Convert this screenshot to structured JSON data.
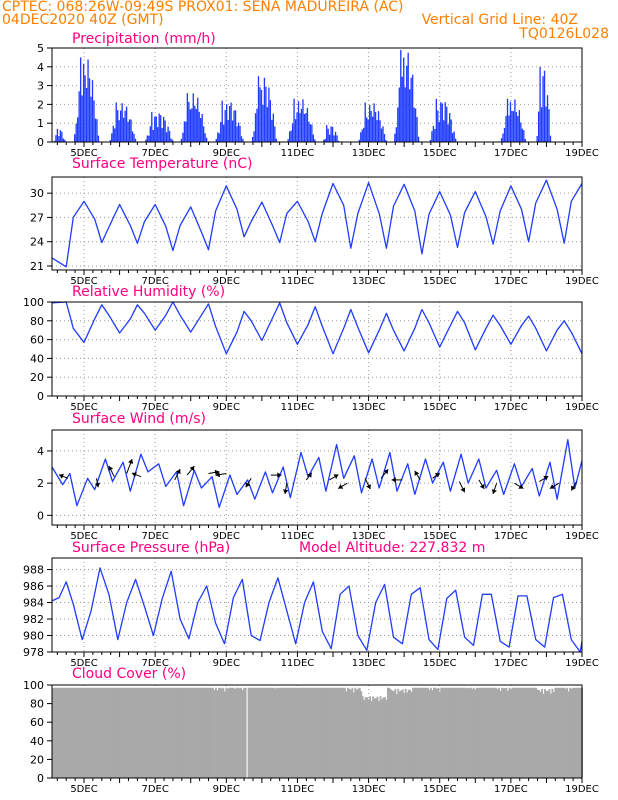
{
  "header": {
    "line1_left": "CPTEC:   068:26W-09:49S   PROX01: SENA MADUREIRA (AC)",
    "line2_left": "04DEC2020 40Z (GMT)",
    "line2_right": "Vertical Grid Line: 40Z",
    "line3_right": "TQ0126L028"
  },
  "colors": {
    "header": "#ff7f00",
    "title": "#ff0080",
    "series": "#1f3cff",
    "cloud": "#a9a9a9",
    "grid": "#9a9a9a"
  },
  "x_axis": {
    "labels": [
      "5DEC",
      "7DEC",
      "9DEC",
      "11DEC",
      "13DEC",
      "15DEC",
      "17DEC",
      "19DEC"
    ],
    "positions": [
      5,
      7,
      9,
      11,
      13,
      15,
      17,
      19
    ],
    "range": [
      4.1,
      19.0
    ]
  },
  "chart_data": [
    {
      "type": "bar",
      "title": "Precipitation (mm/h)",
      "ylim": [
        0,
        5
      ],
      "yticks": [
        "0",
        "1",
        "2",
        "3",
        "4",
        "5"
      ],
      "bursts": [
        {
          "day": 4.15,
          "width": 0.35,
          "peak": 0.7
        },
        {
          "day": 4.72,
          "width": 0.7,
          "peak": 4.5
        },
        {
          "day": 5.72,
          "width": 0.75,
          "peak": 2.1
        },
        {
          "day": 6.72,
          "width": 0.8,
          "peak": 1.6
        },
        {
          "day": 7.72,
          "width": 0.75,
          "peak": 2.6
        },
        {
          "day": 8.7,
          "width": 0.8,
          "peak": 2.2
        },
        {
          "day": 9.72,
          "width": 0.7,
          "peak": 3.5
        },
        {
          "day": 10.72,
          "width": 0.8,
          "peak": 2.3
        },
        {
          "day": 11.72,
          "width": 0.45,
          "peak": 0.9
        },
        {
          "day": 12.72,
          "width": 0.8,
          "peak": 2.1
        },
        {
          "day": 13.72,
          "width": 0.7,
          "peak": 4.9
        },
        {
          "day": 14.72,
          "width": 0.75,
          "peak": 2.3
        },
        {
          "day": 16.72,
          "width": 0.7,
          "peak": 2.3
        },
        {
          "day": 17.72,
          "width": 0.4,
          "peak": 4.0
        }
      ]
    },
    {
      "type": "line",
      "title": "Surface Temperature (nC)",
      "ylim": [
        20.5,
        32
      ],
      "yticks": [
        "21",
        "24",
        "27",
        "30"
      ],
      "ytick_values": [
        21,
        24,
        27,
        30
      ],
      "x": [
        4.1,
        4.5,
        4.7,
        5.0,
        5.3,
        5.5,
        5.7,
        6.0,
        6.3,
        6.5,
        6.7,
        7.0,
        7.3,
        7.5,
        7.7,
        8.0,
        8.3,
        8.5,
        8.7,
        9.0,
        9.3,
        9.5,
        9.7,
        10.0,
        10.3,
        10.5,
        10.7,
        11.0,
        11.3,
        11.5,
        11.7,
        12.0,
        12.3,
        12.5,
        12.7,
        13.0,
        13.3,
        13.5,
        13.7,
        14.0,
        14.3,
        14.5,
        14.7,
        15.0,
        15.3,
        15.5,
        15.7,
        16.0,
        16.3,
        16.5,
        16.7,
        17.0,
        17.3,
        17.5,
        17.7,
        18.0,
        18.3,
        18.5,
        18.7,
        19.0
      ],
      "y": [
        22.0,
        20.9,
        27.0,
        29.0,
        26.8,
        23.9,
        25.8,
        28.6,
        26.0,
        23.8,
        26.5,
        28.6,
        25.9,
        22.9,
        26.0,
        28.3,
        25.2,
        23.0,
        27.8,
        30.9,
        28.0,
        24.6,
        26.5,
        28.9,
        26.0,
        23.9,
        27.5,
        29.0,
        26.5,
        24.0,
        27.5,
        31.2,
        28.5,
        23.2,
        27.5,
        31.3,
        27.5,
        23.2,
        28.4,
        31.1,
        27.8,
        22.5,
        27.4,
        30.2,
        27.3,
        23.3,
        27.6,
        30.2,
        27.1,
        23.7,
        27.8,
        30.9,
        28.0,
        24.0,
        28.8,
        31.6,
        28.0,
        23.8,
        29.0,
        31.2
      ]
    },
    {
      "type": "line",
      "title": "Relative Humidity (%)",
      "ylim": [
        0,
        100
      ],
      "yticks": [
        "0",
        "20",
        "40",
        "60",
        "80",
        "100"
      ],
      "ytick_values": [
        0,
        20,
        40,
        60,
        80,
        100
      ],
      "x": [
        4.1,
        4.5,
        4.7,
        5.0,
        5.3,
        5.5,
        5.7,
        6.0,
        6.3,
        6.5,
        6.7,
        7.0,
        7.3,
        7.5,
        7.7,
        8.0,
        8.3,
        8.5,
        8.7,
        9.0,
        9.3,
        9.5,
        9.7,
        10.0,
        10.3,
        10.5,
        10.7,
        11.0,
        11.3,
        11.5,
        11.7,
        12.0,
        12.3,
        12.5,
        12.7,
        13.0,
        13.3,
        13.5,
        13.7,
        14.0,
        14.3,
        14.5,
        14.7,
        15.0,
        15.3,
        15.5,
        15.7,
        16.0,
        16.3,
        16.5,
        16.7,
        17.0,
        17.3,
        17.5,
        17.7,
        18.0,
        18.3,
        18.5,
        18.7,
        19.0
      ],
      "y": [
        99,
        100,
        72,
        57,
        82,
        97,
        86,
        67,
        82,
        97,
        88,
        70,
        86,
        100,
        86,
        68,
        86,
        98,
        74,
        45,
        68,
        90,
        80,
        59,
        83,
        99,
        78,
        55,
        76,
        95,
        74,
        45,
        72,
        92,
        73,
        46,
        70,
        88,
        70,
        48,
        72,
        92,
        78,
        52,
        75,
        90,
        78,
        49,
        72,
        86,
        75,
        55,
        75,
        85,
        72,
        48,
        70,
        80,
        68,
        45
      ]
    },
    {
      "type": "line",
      "title": "Surface Wind (m/s)",
      "ylim": [
        -0.6,
        5.3
      ],
      "yticks": [
        "0",
        "2",
        "4"
      ],
      "ytick_values": [
        0,
        2,
        4
      ],
      "x": [
        4.1,
        4.4,
        4.6,
        4.8,
        5.1,
        5.3,
        5.6,
        5.8,
        6.1,
        6.3,
        6.6,
        6.8,
        7.1,
        7.3,
        7.6,
        7.8,
        8.1,
        8.3,
        8.6,
        8.8,
        9.1,
        9.3,
        9.6,
        9.8,
        10.1,
        10.3,
        10.6,
        10.8,
        11.1,
        11.3,
        11.6,
        11.8,
        12.1,
        12.3,
        12.6,
        12.8,
        13.1,
        13.3,
        13.6,
        13.8,
        14.1,
        14.3,
        14.6,
        14.8,
        15.1,
        15.3,
        15.6,
        15.8,
        16.1,
        16.3,
        16.6,
        16.8,
        17.1,
        17.3,
        17.6,
        17.8,
        18.1,
        18.3,
        18.6,
        18.8,
        19.0
      ],
      "y": [
        3.0,
        1.9,
        2.6,
        0.6,
        2.3,
        1.6,
        3.5,
        2.1,
        3.3,
        1.5,
        3.8,
        2.7,
        3.2,
        1.8,
        2.7,
        0.6,
        2.8,
        1.7,
        2.4,
        0.5,
        2.5,
        1.3,
        2.2,
        1.0,
        2.7,
        1.4,
        3.0,
        1.1,
        3.9,
        2.4,
        3.6,
        1.5,
        4.4,
        2.3,
        3.7,
        1.4,
        3.5,
        1.7,
        3.9,
        1.5,
        3.2,
        1.3,
        3.5,
        2.0,
        3.3,
        1.5,
        3.8,
        2.0,
        3.5,
        1.7,
        2.8,
        1.3,
        3.2,
        1.8,
        2.9,
        1.2,
        3.3,
        1.0,
        4.7,
        1.7,
        3.4
      ],
      "vectors": [
        {
          "x": 4.55,
          "y": 2.3,
          "u": -0.5,
          "v": 0.2
        },
        {
          "x": 5.35,
          "y": 2.3,
          "u": 0.1,
          "v": -0.5
        },
        {
          "x": 5.85,
          "y": 2.4,
          "u": -0.3,
          "v": 0.6
        },
        {
          "x": 6.2,
          "y": 2.6,
          "u": 0.3,
          "v": 0.8
        },
        {
          "x": 6.6,
          "y": 2.4,
          "u": -0.5,
          "v": 0.2
        },
        {
          "x": 7.55,
          "y": 2.2,
          "u": 0.3,
          "v": 0.6
        },
        {
          "x": 7.9,
          "y": 2.5,
          "u": 0.4,
          "v": 0.5
        },
        {
          "x": 8.5,
          "y": 2.6,
          "u": 0.6,
          "v": 0.1
        },
        {
          "x": 9.0,
          "y": 2.6,
          "u": -0.6,
          "v": -0.1
        },
        {
          "x": 9.7,
          "y": 2.3,
          "u": -0.3,
          "v": -0.5
        },
        {
          "x": 10.25,
          "y": 2.5,
          "u": 0.6,
          "v": 0.0
        },
        {
          "x": 10.7,
          "y": 2.0,
          "u": -0.1,
          "v": -0.6
        },
        {
          "x": 11.25,
          "y": 2.2,
          "u": 0.3,
          "v": 0.4
        },
        {
          "x": 11.9,
          "y": 2.2,
          "u": 0.5,
          "v": 0.3
        },
        {
          "x": 12.4,
          "y": 2.0,
          "u": -0.5,
          "v": -0.3
        },
        {
          "x": 12.9,
          "y": 2.3,
          "u": 0.3,
          "v": -0.6
        },
        {
          "x": 13.35,
          "y": 2.3,
          "u": 0.4,
          "v": 0.5
        },
        {
          "x": 13.95,
          "y": 2.2,
          "u": -0.6,
          "v": 0.0
        },
        {
          "x": 14.45,
          "y": 2.2,
          "u": -0.3,
          "v": 0.5
        },
        {
          "x": 14.8,
          "y": 2.3,
          "u": 0.4,
          "v": 0.3
        },
        {
          "x": 15.55,
          "y": 2.1,
          "u": 0.3,
          "v": -0.6
        },
        {
          "x": 16.1,
          "y": 2.2,
          "u": 0.3,
          "v": -0.5
        },
        {
          "x": 16.6,
          "y": 2.0,
          "u": -0.2,
          "v": -0.6
        },
        {
          "x": 17.1,
          "y": 2.0,
          "u": 0.5,
          "v": -0.3
        },
        {
          "x": 17.8,
          "y": 2.1,
          "u": 0.5,
          "v": 0.3
        },
        {
          "x": 18.35,
          "y": 2.0,
          "u": -0.5,
          "v": -0.3
        },
        {
          "x": 18.85,
          "y": 2.1,
          "u": -0.3,
          "v": -0.5
        }
      ]
    },
    {
      "type": "line",
      "title": "Surface Pressure (hPa)",
      "subtitle": "Model Altitude: 227.832  m",
      "ylim": [
        978,
        989.4
      ],
      "yticks": [
        "978",
        "980",
        "982",
        "984",
        "986",
        "988"
      ],
      "ytick_values": [
        978,
        980,
        982,
        984,
        986,
        988
      ],
      "x": [
        4.1,
        4.3,
        4.5,
        4.7,
        4.95,
        5.2,
        5.45,
        5.7,
        5.95,
        6.2,
        6.45,
        6.7,
        6.95,
        7.2,
        7.45,
        7.7,
        7.95,
        8.2,
        8.45,
        8.7,
        8.95,
        9.2,
        9.45,
        9.7,
        9.95,
        10.2,
        10.45,
        10.7,
        10.95,
        11.2,
        11.45,
        11.7,
        11.95,
        12.2,
        12.45,
        12.7,
        12.95,
        13.2,
        13.45,
        13.7,
        13.95,
        14.2,
        14.45,
        14.7,
        14.95,
        15.2,
        15.45,
        15.7,
        15.95,
        16.2,
        16.45,
        16.7,
        16.95,
        17.2,
        17.45,
        17.7,
        17.95,
        18.2,
        18.45,
        18.7,
        18.95,
        19.0
      ],
      "y": [
        984.2,
        984.6,
        986.5,
        983.8,
        979.5,
        983.0,
        988.2,
        985.0,
        979.5,
        984.0,
        986.8,
        983.5,
        980.0,
        984.5,
        987.8,
        982.0,
        979.6,
        984.0,
        986.0,
        981.5,
        979.0,
        984.6,
        986.8,
        980.0,
        979.4,
        984.0,
        987.0,
        983.0,
        979.0,
        984.0,
        986.5,
        980.5,
        978.4,
        985.0,
        986.0,
        980.0,
        978.2,
        984.0,
        986.2,
        979.8,
        979.0,
        985.0,
        985.8,
        979.5,
        978.3,
        984.5,
        985.5,
        979.8,
        978.8,
        985.0,
        985.0,
        979.3,
        978.6,
        984.8,
        984.8,
        979.5,
        978.6,
        984.6,
        985.0,
        979.5,
        978.0,
        979.3
      ]
    },
    {
      "type": "bar",
      "title": "Cloud Cover (%)",
      "ylim": [
        0,
        100
      ],
      "yticks": [
        "0",
        "20",
        "40",
        "60",
        "80",
        "100"
      ],
      "ytick_values": [
        0,
        20,
        40,
        60,
        80,
        100
      ],
      "base_level": 97,
      "dips": [
        {
          "day": 8.6,
          "width": 0.5,
          "level": 93
        },
        {
          "day": 9.2,
          "width": 0.4,
          "level": 94
        },
        {
          "day": 10.2,
          "width": 0.3,
          "level": 95
        },
        {
          "day": 12.3,
          "width": 0.5,
          "level": 92
        },
        {
          "day": 12.8,
          "width": 0.7,
          "level": 82
        },
        {
          "day": 13.6,
          "width": 0.6,
          "level": 90
        },
        {
          "day": 14.6,
          "width": 0.4,
          "level": 93
        },
        {
          "day": 15.7,
          "width": 0.4,
          "level": 94
        },
        {
          "day": 16.6,
          "width": 0.5,
          "level": 93
        },
        {
          "day": 17.7,
          "width": 0.5,
          "level": 90
        },
        {
          "day": 18.4,
          "width": 0.4,
          "level": 93
        }
      ],
      "gap_day": 9.55
    }
  ]
}
